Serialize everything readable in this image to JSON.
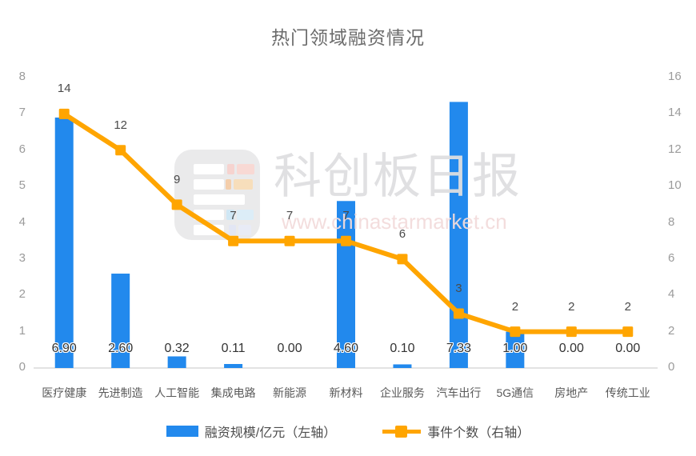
{
  "title": "热门领域融资情况",
  "watermark": {
    "brand": "科创板日报",
    "url": "www.chinastarmarket.cn"
  },
  "legend": {
    "bar_label": "融资规模/亿元（左轴）",
    "line_label": "事件个数（右轴）"
  },
  "colors": {
    "bar": "#2289ed",
    "line": "#ffa500",
    "axis_line": "#e2e2e2"
  },
  "chart_data": {
    "type": "bar",
    "title": "热门领域融资情况",
    "categories": [
      "医疗健康",
      "先进制造",
      "人工智能",
      "集成电路",
      "新能源",
      "新材料",
      "企业服务",
      "汽车出行",
      "5G通信",
      "房地产",
      "传统工业"
    ],
    "series": [
      {
        "name": "融资规模/亿元（左轴）",
        "type": "bar",
        "axis": "left",
        "color": "#2289ed",
        "values": [
          6.9,
          2.6,
          0.32,
          0.11,
          0.0,
          4.6,
          0.1,
          7.33,
          1.0,
          0.0,
          0.0
        ],
        "display_values": [
          "6.90",
          "2.60",
          "0.32",
          "0.11",
          "0.00",
          "4.60",
          "0.10",
          "7.33",
          "1.00",
          "0.00",
          "0.00"
        ]
      },
      {
        "name": "事件个数（右轴）",
        "type": "line",
        "axis": "right",
        "color": "#ffa500",
        "values": [
          14,
          12,
          9,
          7,
          7,
          7,
          6,
          3,
          2,
          2,
          2
        ],
        "display_values": [
          "14",
          "12",
          "9",
          "7",
          "7",
          "7",
          "6",
          "3",
          "2",
          "2",
          "2"
        ]
      }
    ],
    "left_axis": {
      "min": 0,
      "max": 8,
      "step": 1,
      "ticks": [
        "0",
        "1",
        "2",
        "3",
        "4",
        "5",
        "6",
        "7",
        "8"
      ]
    },
    "right_axis": {
      "min": 0,
      "max": 16,
      "step": 2,
      "ticks": [
        "0",
        "2",
        "4",
        "6",
        "8",
        "10",
        "12",
        "14",
        "16"
      ]
    },
    "grid": false,
    "legend_position": "bottom"
  }
}
